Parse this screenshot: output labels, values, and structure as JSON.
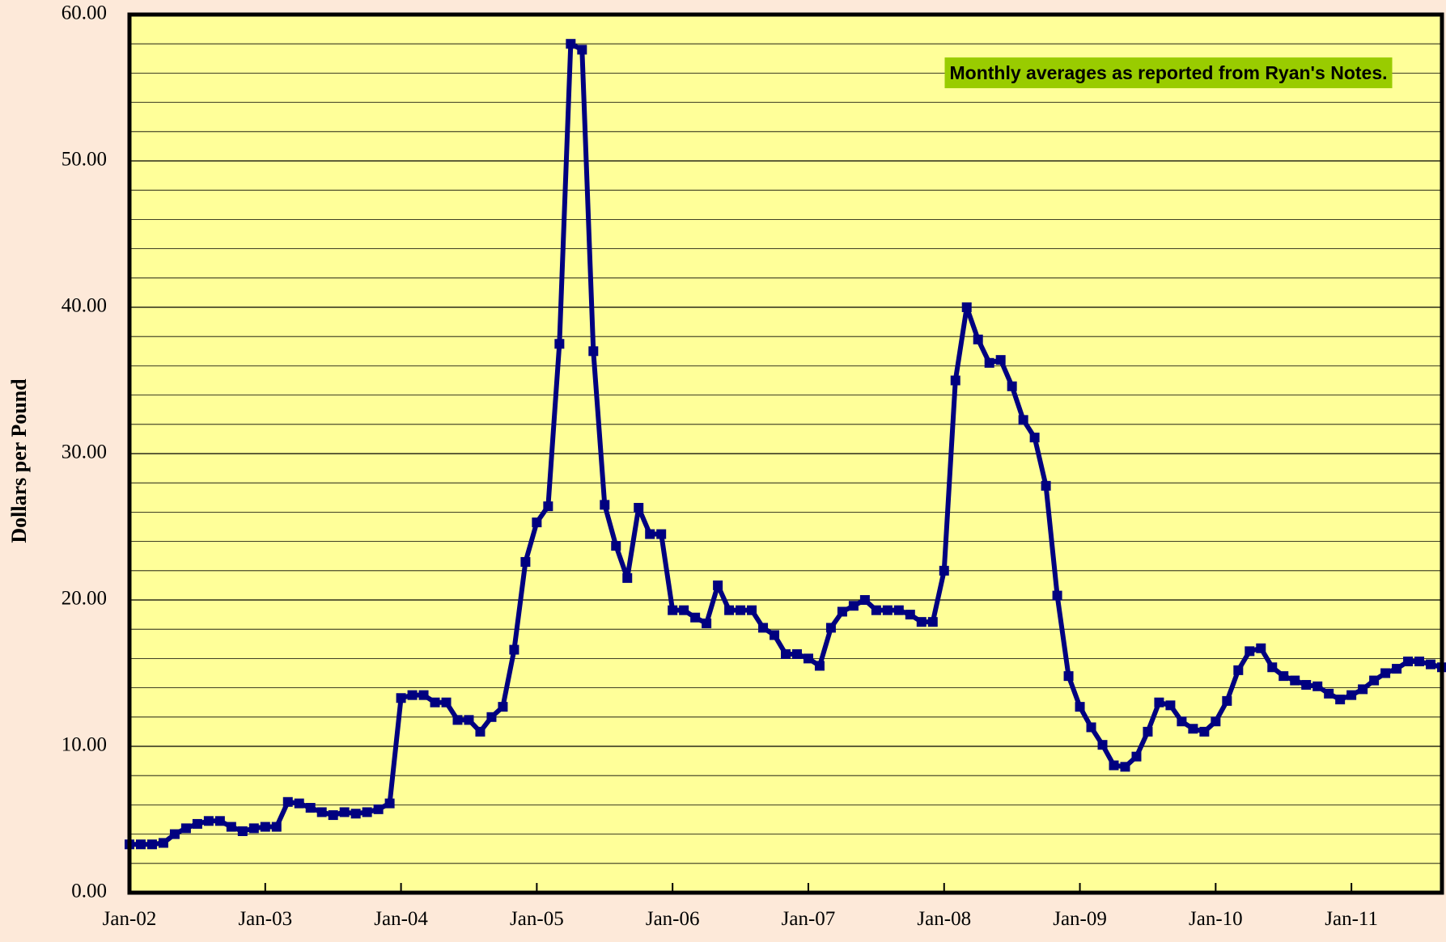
{
  "chart_data": {
    "type": "line",
    "y_label": "Dollars per Pound",
    "annotation": "Monthly averages as reported from Ryan's Notes.",
    "categories": [
      "Jan-02",
      null,
      null,
      null,
      null,
      null,
      null,
      null,
      null,
      null,
      null,
      null,
      "Jan-03",
      null,
      null,
      null,
      null,
      null,
      null,
      null,
      null,
      null,
      null,
      null,
      "Jan-04",
      null,
      null,
      null,
      null,
      null,
      null,
      null,
      null,
      null,
      null,
      null,
      "Jan-05",
      null,
      null,
      null,
      null,
      null,
      null,
      null,
      null,
      null,
      null,
      null,
      "Jan-06",
      null,
      null,
      null,
      null,
      null,
      null,
      null,
      null,
      null,
      null,
      null,
      "Jan-07",
      null,
      null,
      null,
      null,
      null,
      null,
      null,
      null,
      null,
      null,
      null,
      "Jan-08",
      null,
      null,
      null,
      null,
      null,
      null,
      null,
      null,
      null,
      null,
      null,
      "Jan-09",
      null,
      null,
      null,
      null,
      null,
      null,
      null,
      null,
      null,
      null,
      null,
      "Jan-10",
      null,
      null,
      null,
      null,
      null,
      null,
      null,
      null,
      null,
      null,
      null,
      "Jan-11",
      null,
      null,
      null,
      null,
      null,
      null,
      null,
      null
    ],
    "series": [
      {
        "color": "#000080",
        "values": [
          3.3,
          3.3,
          3.3,
          3.4,
          4.0,
          4.4,
          4.7,
          4.9,
          4.9,
          4.5,
          4.2,
          4.4,
          4.5,
          4.5,
          6.2,
          6.1,
          5.8,
          5.5,
          5.3,
          5.5,
          5.4,
          5.5,
          5.7,
          6.1,
          13.3,
          13.5,
          13.5,
          13.0,
          13.0,
          11.8,
          11.8,
          11.0,
          12.0,
          12.7,
          16.6,
          22.6,
          25.3,
          26.4,
          37.5,
          58.0,
          57.6,
          37.0,
          26.5,
          23.7,
          21.5,
          26.3,
          24.5,
          24.5,
          19.3,
          19.3,
          18.8,
          18.4,
          21.0,
          19.3,
          19.3,
          19.3,
          18.1,
          17.6,
          16.3,
          16.3,
          16.0,
          15.5,
          18.1,
          19.2,
          19.6,
          20.0,
          19.3,
          19.3,
          19.3,
          19.0,
          18.5,
          18.5,
          22.0,
          35.0,
          40.0,
          37.8,
          36.2,
          36.4,
          34.6,
          32.3,
          31.1,
          27.8,
          20.3,
          14.8,
          12.7,
          11.3,
          10.1,
          8.7,
          8.6,
          9.3,
          11.0,
          13.0,
          12.8,
          11.7,
          11.2,
          11.0,
          11.7,
          13.1,
          15.2,
          16.5,
          16.7,
          15.4,
          14.8,
          14.5,
          14.2,
          14.1,
          13.6,
          13.2,
          13.5,
          13.9,
          14.5,
          15.0,
          15.3,
          15.8,
          15.8,
          15.6,
          15.4
        ]
      }
    ],
    "ylim": [
      0,
      60
    ],
    "yticks": [
      {
        "value": 0,
        "label": "0.00"
      },
      {
        "value": 10,
        "label": "10.00"
      },
      {
        "value": 20,
        "label": "20.00"
      },
      {
        "value": 30,
        "label": "30.00"
      },
      {
        "value": 40,
        "label": "40.00"
      },
      {
        "value": 50,
        "label": "50.00"
      },
      {
        "value": 60,
        "label": "60.00"
      }
    ],
    "minor_yticks": [
      2,
      4,
      6,
      8,
      12,
      14,
      16,
      18,
      22,
      24,
      26,
      28,
      32,
      34,
      36,
      38,
      42,
      44,
      46,
      48,
      52,
      54,
      56,
      58
    ],
    "grid": true,
    "plot_background": "#ffff99",
    "annotation_background": "#99cc00"
  }
}
